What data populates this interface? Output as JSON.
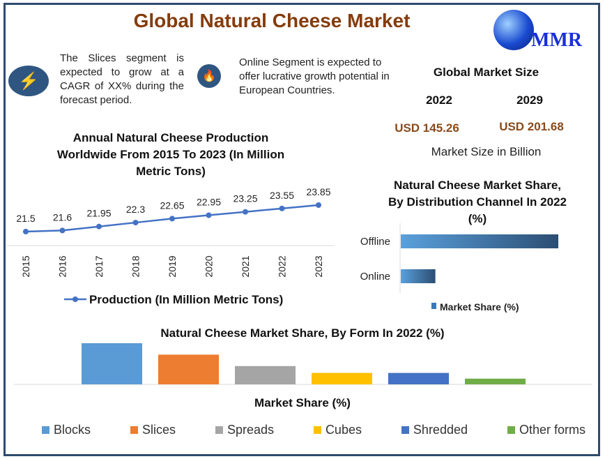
{
  "title": "Global Natural Cheese Market",
  "logo": {
    "text": "MMR",
    "icon": "globe-icon"
  },
  "notes": [
    {
      "icon": "lightning-icon",
      "text": "The Slices segment is expected to grow at a CAGR of XX% during the forecast period."
    },
    {
      "icon": "flame-icon",
      "text": "Online Segment is expected to offer lucrative growth potential in European Countries."
    }
  ],
  "market_size": {
    "heading": "Global Market Size",
    "years": [
      "2022",
      "2029"
    ],
    "values": [
      "USD 145.26",
      "USD 201.68"
    ],
    "unit_label": "Market Size in Billion"
  },
  "colors": {
    "title": "#843c0c",
    "frame": "#2f4b6e",
    "line": "#4472c4"
  },
  "chart_data": [
    {
      "type": "line",
      "title": "Annual Natural Cheese Production Worldwide From 2015 To 2023 (In Million Metric Tons)",
      "categories": [
        "2015",
        "2016",
        "2017",
        "2018",
        "2019",
        "2020",
        "2021",
        "2022",
        "2023"
      ],
      "series": [
        {
          "name": "Production (In Million Metric Tons)",
          "values": [
            21.5,
            21.6,
            21.95,
            22.3,
            22.65,
            22.95,
            23.25,
            23.55,
            23.85
          ]
        }
      ],
      "legend": "bottom"
    },
    {
      "type": "bar",
      "orientation": "horizontal",
      "title": "Natural Cheese Market Share, By Distribution Channel In 2022 (%)",
      "categories": [
        "Offline",
        "Online"
      ],
      "series": [
        {
          "name": "Market Share (%)",
          "values": [
            82,
            18
          ]
        }
      ],
      "legend": "bottom"
    },
    {
      "type": "bar",
      "title": "Natural Cheese Market Share, By Form In 2022 (%)",
      "xlabel": "Market Share (%)",
      "categories": [
        "Blocks",
        "Slices",
        "Spreads",
        "Cubes",
        "Shredded",
        "Other forms"
      ],
      "values": [
        36,
        26,
        16,
        10,
        10,
        5
      ],
      "colors": [
        "#5b9bd5",
        "#ed7d31",
        "#a5a5a5",
        "#ffc000",
        "#4472c4",
        "#70ad47"
      ],
      "legend": "bottom"
    }
  ]
}
